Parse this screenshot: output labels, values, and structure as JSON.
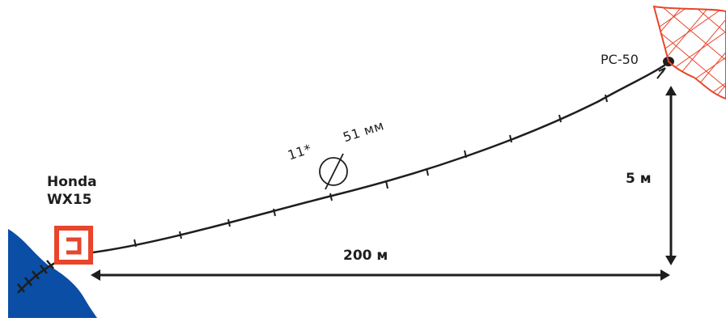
{
  "pump": {
    "name": "Honda",
    "model": "WX15"
  },
  "target": {
    "label": "РС-50"
  },
  "hose": {
    "count": "11*",
    "diameter": "51 мм"
  },
  "dimensions": {
    "height": "5 м",
    "distance": "200 м"
  },
  "colors": {
    "water": "#0a4ea6",
    "pump": "#e8452c",
    "fire": "#e8452c",
    "ink": "#1e1e1e"
  }
}
